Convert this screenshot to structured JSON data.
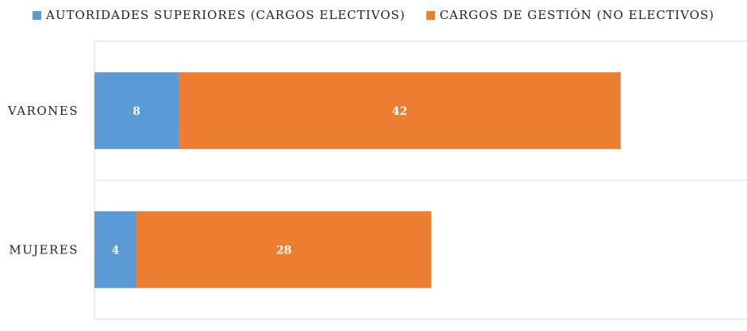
{
  "chart_data": {
    "type": "bar",
    "orientation": "horizontal",
    "stacked": true,
    "categories": [
      "VARONES",
      "MUJERES"
    ],
    "series": [
      {
        "name": "AUTORIDADES SUPERIORES (CARGOS ELECTIVOS)",
        "color": "#5B9BD5",
        "values": [
          8,
          4
        ]
      },
      {
        "name": "CARGOS DE GESTIÓN (NO ELECTIVOS)",
        "color": "#ED7D31",
        "values": [
          42,
          28
        ]
      }
    ],
    "xlim": [
      0,
      62
    ],
    "grid": true,
    "legend_position": "top",
    "data_labels": true
  }
}
